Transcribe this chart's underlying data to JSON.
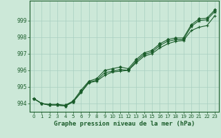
{
  "background_color": "#cce8d8",
  "plot_bg_color": "#cce8d8",
  "grid_color": "#a8cfc0",
  "line_color": "#1a5c2a",
  "x_values": [
    0,
    1,
    2,
    3,
    4,
    5,
    6,
    7,
    8,
    9,
    10,
    11,
    12,
    13,
    14,
    15,
    16,
    17,
    18,
    19,
    20,
    21,
    22,
    23
  ],
  "line1": [
    994.3,
    994.0,
    993.9,
    993.9,
    993.85,
    994.1,
    994.7,
    995.3,
    995.4,
    995.85,
    995.95,
    996.05,
    996.0,
    996.55,
    996.95,
    997.1,
    997.5,
    997.75,
    997.85,
    997.85,
    998.65,
    999.0,
    999.05,
    999.55
  ],
  "line2": [
    994.3,
    994.0,
    993.9,
    993.9,
    993.85,
    994.1,
    994.65,
    995.25,
    995.35,
    995.7,
    995.9,
    995.95,
    996.0,
    996.45,
    996.85,
    997.0,
    997.35,
    997.6,
    997.75,
    997.8,
    998.4,
    998.6,
    998.7,
    999.3
  ],
  "line3": [
    994.3,
    994.0,
    993.95,
    993.95,
    993.9,
    994.15,
    994.8,
    995.35,
    995.5,
    996.0,
    996.1,
    996.2,
    996.1,
    996.65,
    997.05,
    997.2,
    997.6,
    997.85,
    997.95,
    997.95,
    998.75,
    999.1,
    999.15,
    999.65
  ],
  "ylim": [
    993.5,
    1000.2
  ],
  "yticks": [
    994,
    995,
    996,
    997,
    998,
    999
  ],
  "xlabel": "Graphe pression niveau de la mer (hPa)",
  "xticks": [
    0,
    1,
    2,
    3,
    4,
    5,
    6,
    7,
    8,
    9,
    10,
    11,
    12,
    13,
    14,
    15,
    16,
    17,
    18,
    19,
    20,
    21,
    22,
    23
  ],
  "tick_fontsize": 5.5,
  "xlabel_fontsize": 6.5
}
